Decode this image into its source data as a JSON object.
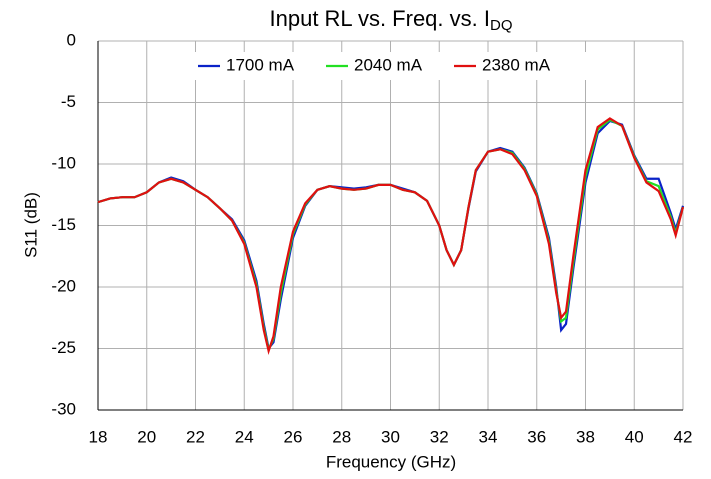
{
  "chart_data": {
    "type": "line",
    "title": "Input RL vs. Freq. vs. I",
    "title_subscript": "DQ",
    "x_label": "Frequency (GHz)",
    "y_label": "S11 (dB)",
    "x": [
      18,
      18.5,
      19,
      19.5,
      20,
      20.5,
      21,
      21.5,
      22,
      22.5,
      23,
      23.5,
      24,
      24.5,
      24.8,
      25,
      25.2,
      25.5,
      26,
      26.5,
      27,
      27.5,
      28,
      28.5,
      29,
      29.5,
      30,
      30.5,
      31,
      31.5,
      32,
      32.3,
      32.6,
      32.9,
      33.2,
      33.5,
      34,
      34.5,
      35,
      35.5,
      36,
      36.5,
      36.8,
      37,
      37.2,
      37.5,
      38,
      38.5,
      39,
      39.5,
      40,
      40.5,
      41,
      41.5,
      41.7,
      42
    ],
    "series": [
      {
        "name": "1700 mA",
        "color": "#0a22c8",
        "values": [
          -13.1,
          -12.8,
          -12.7,
          -12.7,
          -12.3,
          -11.5,
          -11.1,
          -11.4,
          -12.1,
          -12.7,
          -13.6,
          -14.5,
          -16.2,
          -19.5,
          -23,
          -25.0,
          -24.5,
          -21,
          -16,
          -13.4,
          -12.1,
          -11.8,
          -11.9,
          -12.0,
          -11.9,
          -11.7,
          -11.7,
          -12.0,
          -12.3,
          -13.0,
          -15.0,
          -17.0,
          -18.2,
          -17,
          -13.6,
          -10.6,
          -9.0,
          -8.7,
          -9.0,
          -10.3,
          -12.4,
          -16,
          -20,
          -23.5,
          -23,
          -18.5,
          -11.5,
          -7.5,
          -6.5,
          -6.8,
          -9.3,
          -11.2,
          -11.2,
          -14,
          -15.3,
          -13.4
        ]
      },
      {
        "name": "2040 mA",
        "color": "#22e022",
        "values": [
          -13.1,
          -12.8,
          -12.7,
          -12.7,
          -12.3,
          -11.5,
          -11.2,
          -11.5,
          -12.1,
          -12.7,
          -13.6,
          -14.6,
          -16.4,
          -19.8,
          -23.3,
          -25.1,
          -24.2,
          -20.5,
          -15.7,
          -13.3,
          -12.1,
          -11.8,
          -12.0,
          -12.1,
          -12.0,
          -11.7,
          -11.7,
          -12.1,
          -12.3,
          -13.0,
          -15.0,
          -17.0,
          -18.2,
          -17,
          -13.5,
          -10.5,
          -9.0,
          -8.8,
          -9.1,
          -10.4,
          -12.5,
          -16.3,
          -20.3,
          -22.8,
          -22.5,
          -18,
          -11,
          -7.2,
          -6.4,
          -6.9,
          -9.4,
          -11.4,
          -11.8,
          -14.3,
          -15.6,
          -13.5
        ]
      },
      {
        "name": "2380 mA",
        "color": "#e01010",
        "values": [
          -13.1,
          -12.8,
          -12.7,
          -12.7,
          -12.3,
          -11.5,
          -11.2,
          -11.5,
          -12.1,
          -12.7,
          -13.6,
          -14.6,
          -16.5,
          -20,
          -23.5,
          -25.2,
          -24,
          -20,
          -15.5,
          -13.2,
          -12.1,
          -11.8,
          -12.0,
          -12.1,
          -12.0,
          -11.7,
          -11.7,
          -12.1,
          -12.3,
          -13.0,
          -15.0,
          -17.0,
          -18.2,
          -17,
          -13.5,
          -10.5,
          -9.0,
          -8.8,
          -9.2,
          -10.5,
          -12.6,
          -16.5,
          -20.5,
          -22.5,
          -22,
          -17.5,
          -10.5,
          -7.0,
          -6.3,
          -6.9,
          -9.5,
          -11.5,
          -12.2,
          -14.5,
          -15.8,
          -13.5
        ]
      }
    ],
    "xlim": [
      18,
      42
    ],
    "xticks": [
      18,
      20,
      22,
      24,
      26,
      28,
      30,
      32,
      34,
      36,
      38,
      40,
      42
    ],
    "ylim": [
      -30,
      0
    ],
    "yticks": [
      -30,
      -25,
      -20,
      -15,
      -10,
      -5,
      0
    ],
    "grid": true,
    "legend": "top"
  }
}
